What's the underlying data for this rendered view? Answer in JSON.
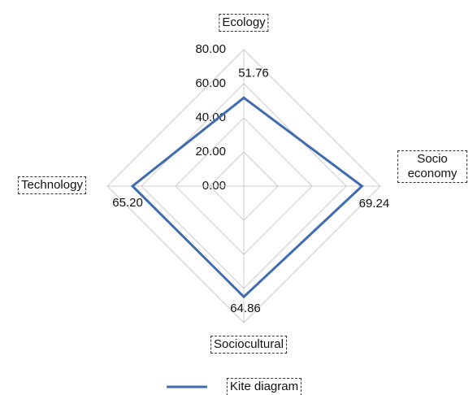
{
  "chart_data": {
    "type": "radar",
    "categories": [
      "Ecology",
      "Socio economy",
      "Sociocultural",
      "Technology"
    ],
    "series": [
      {
        "name": "Kite diagram",
        "color": "#3f6bb0",
        "values": [
          51.76,
          69.24,
          64.86,
          65.2
        ],
        "value_labels": [
          "51.76",
          "69.24",
          "64.86",
          "65.20"
        ]
      }
    ],
    "rlim": [
      0,
      80
    ],
    "rticks": [
      {
        "value": 0,
        "label": "0.00"
      },
      {
        "value": 20,
        "label": "20.00"
      },
      {
        "value": 40,
        "label": "40.00"
      },
      {
        "value": 60,
        "label": "60.00"
      },
      {
        "value": 80,
        "label": "80.00"
      }
    ],
    "grid": true
  }
}
